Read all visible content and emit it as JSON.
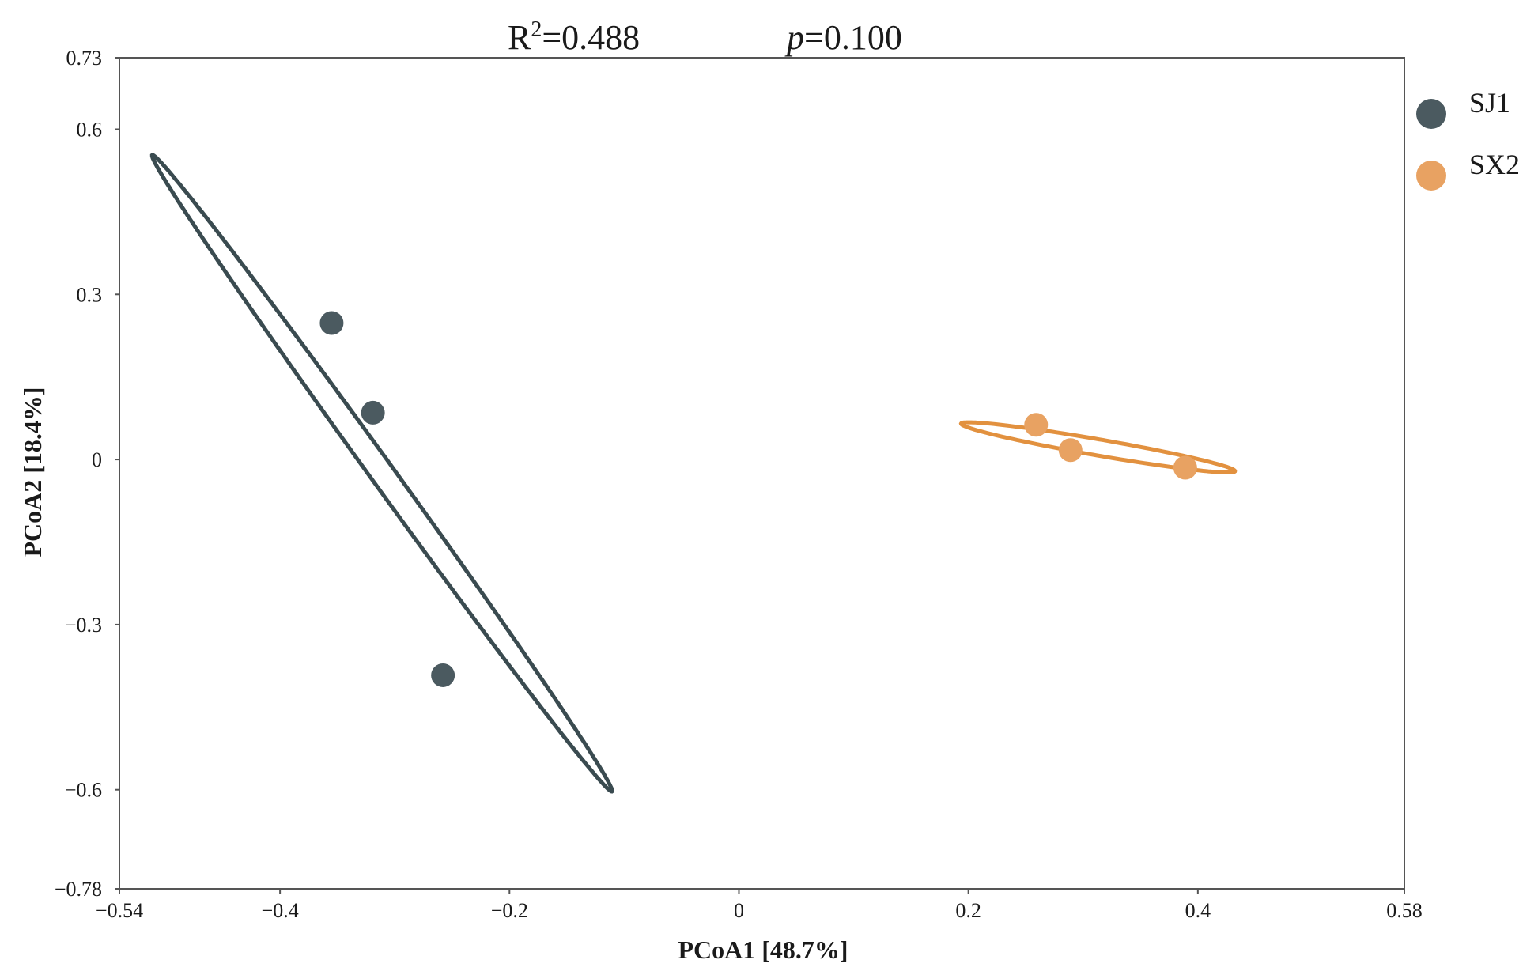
{
  "chart_data": {
    "type": "scatter",
    "title": "",
    "stats": {
      "r2_prefix": "R",
      "r2_sup": "2",
      "r2_value": "=0.488",
      "p_symbol": "p",
      "p_value": "=0.100"
    },
    "xlabel": "PCoA1 [48.7%]",
    "ylabel": "PCoA2 [18.4%]",
    "xlim": [
      -0.54,
      0.58
    ],
    "ylim": [
      -0.78,
      0.73
    ],
    "xticks": [
      -0.54,
      -0.4,
      -0.2,
      0,
      0.2,
      0.4,
      0.58
    ],
    "xtick_labels": [
      "−0.54",
      "−0.4",
      "−0.2",
      "0",
      "0.2",
      "0.4",
      "0.58"
    ],
    "yticks": [
      0.73,
      0.6,
      0.3,
      0,
      -0.3,
      -0.6,
      -0.78
    ],
    "ytick_labels": [
      "0.73",
      "0.6",
      "0.3",
      "0",
      "−0.3",
      "−0.6",
      "−0.78"
    ],
    "grid": false,
    "legend_position": "top-right (outside plot)",
    "series": [
      {
        "name": "SJ1",
        "color": "#4b5a60",
        "ellipse_color": "#3a4b50",
        "points": [
          {
            "x": -0.355,
            "y": 0.248
          },
          {
            "x": -0.319,
            "y": 0.085
          },
          {
            "x": -0.258,
            "y": -0.392
          }
        ],
        "ellipse": {
          "cx": -0.311,
          "cy": -0.025,
          "semi_major": 0.612,
          "semi_minor": 0.012,
          "angle_deg": -70.9
        }
      },
      {
        "name": "SX2",
        "color": "#e8a262",
        "ellipse_color": "#e2913f",
        "points": [
          {
            "x": 0.259,
            "y": 0.063
          },
          {
            "x": 0.289,
            "y": 0.017
          },
          {
            "x": 0.389,
            "y": -0.015
          }
        ],
        "ellipse": {
          "cx": 0.313,
          "cy": 0.022,
          "semi_major": 0.127,
          "semi_minor": 0.014,
          "angle_deg": -20.1
        }
      }
    ]
  }
}
